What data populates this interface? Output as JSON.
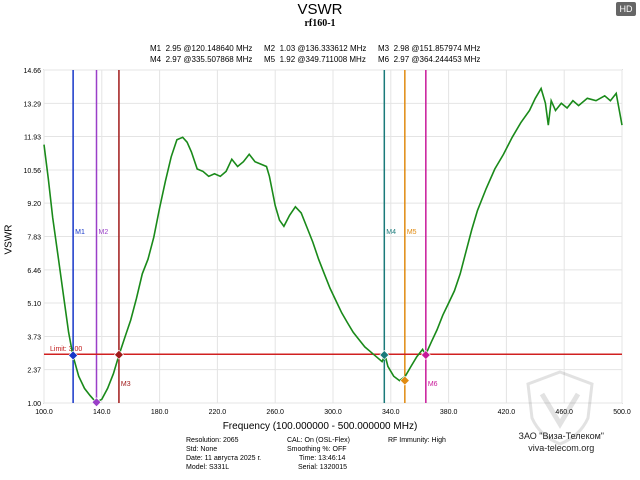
{
  "badge": "HD",
  "chart_data": {
    "type": "line",
    "title": "VSWR",
    "subtitle": "rf160-1",
    "xlabel": "Frequency (100.000000 - 500.000000 MHz)",
    "ylabel": "VSWR",
    "xlim": [
      100,
      500
    ],
    "ylim": [
      1.0,
      14.66
    ],
    "xticks": [
      "100.0",
      "140.0",
      "180.0",
      "220.0",
      "260.0",
      "300.0",
      "340.0",
      "380.0",
      "420.0",
      "460.0",
      "500.0"
    ],
    "yticks": [
      "1.00",
      "2.37",
      "3.73",
      "5.10",
      "6.46",
      "7.83",
      "9.20",
      "10.56",
      "11.93",
      "13.29",
      "14.66"
    ],
    "limit": {
      "label": "Limit: 3.00",
      "value": 3.0
    },
    "series": [
      {
        "color": "#1a8a1a",
        "x": [
          100,
          103,
          106,
          110,
          114,
          117,
          120,
          124,
          128,
          132,
          136,
          140,
          144,
          148,
          152,
          156,
          160,
          164,
          168,
          172,
          176,
          180,
          184,
          188,
          192,
          196,
          199,
          202,
          206,
          210,
          214,
          218,
          222,
          226,
          230,
          234,
          238,
          242,
          246,
          250,
          254,
          256,
          258,
          260,
          263,
          266,
          270,
          274,
          278,
          282,
          286,
          290,
          294,
          298,
          302,
          306,
          310,
          314,
          318,
          322,
          326,
          330,
          334,
          336,
          338,
          342,
          346,
          350,
          354,
          358,
          362,
          364,
          368,
          372,
          376,
          380,
          384,
          388,
          392,
          396,
          400,
          406,
          412,
          418,
          424,
          430,
          436,
          440,
          444,
          447,
          449,
          451,
          454,
          458,
          462,
          466,
          470,
          476,
          482,
          488,
          492,
          496,
          500
        ],
        "y": [
          11.6,
          10.2,
          8.6,
          6.9,
          5.2,
          3.9,
          2.95,
          2.1,
          1.6,
          1.3,
          1.03,
          1.15,
          1.6,
          2.2,
          2.98,
          3.7,
          4.4,
          5.3,
          6.3,
          6.9,
          7.8,
          9.0,
          10.1,
          11.1,
          11.8,
          11.9,
          11.7,
          11.3,
          10.6,
          10.5,
          10.3,
          10.4,
          10.3,
          10.5,
          11.0,
          10.7,
          10.9,
          11.2,
          10.9,
          10.8,
          10.7,
          10.3,
          9.7,
          9.1,
          8.5,
          8.25,
          8.7,
          9.05,
          8.8,
          8.2,
          7.6,
          6.9,
          6.3,
          5.7,
          5.2,
          4.7,
          4.3,
          3.9,
          3.6,
          3.3,
          3.1,
          2.9,
          2.7,
          2.97,
          2.5,
          2.1,
          1.92,
          2.1,
          2.5,
          2.9,
          3.2,
          2.97,
          3.5,
          4.0,
          4.6,
          5.1,
          5.6,
          6.3,
          7.2,
          8.1,
          8.9,
          9.8,
          10.6,
          11.2,
          11.9,
          12.5,
          13.0,
          13.5,
          13.9,
          13.3,
          12.4,
          13.4,
          13.0,
          13.3,
          13.1,
          13.4,
          13.2,
          13.5,
          13.4,
          13.6,
          13.4,
          13.7,
          12.4
        ]
      }
    ],
    "markers": [
      {
        "name": "M1",
        "label": "M1",
        "x": 120.14864,
        "y": 2.95,
        "color": "#1636c8",
        "readout": "2.95 @120.148640 MHz",
        "tag_pos": "top"
      },
      {
        "name": "M2",
        "label": "M2",
        "x": 136.333612,
        "y": 1.03,
        "color": "#9a3fc8",
        "readout": "1.03 @136.333612 MHz",
        "tag_pos": "top"
      },
      {
        "name": "M3",
        "label": "M3",
        "x": 151.857974,
        "y": 2.98,
        "color": "#a01a1a",
        "readout": "2.98 @151.857974 MHz",
        "tag_pos": "bottom"
      },
      {
        "name": "M4",
        "label": "M4",
        "x": 335.507868,
        "y": 2.97,
        "color": "#1a7a7a",
        "readout": "2.97 @335.507868 MHz",
        "tag_pos": "top"
      },
      {
        "name": "M5",
        "label": "M5",
        "x": 349.711008,
        "y": 1.92,
        "color": "#e08a10",
        "readout": "1.92 @349.711008 MHz",
        "tag_pos": "top"
      },
      {
        "name": "M6",
        "label": "M6",
        "x": 364.244453,
        "y": 2.97,
        "color": "#c81a9a",
        "readout": "2.97 @364.244453 MHz",
        "tag_pos": "bottom"
      }
    ],
    "grid": true
  },
  "footer": {
    "resolution": "Resolution: 2065",
    "std": "Std: None",
    "date": "Date: 11 августа 2025 г.",
    "model": "Model: S331L",
    "cal": "CAL: On (OSL-Flex)",
    "smoothing": "Smoothing %: OFF",
    "time": "Time: 13:46:14",
    "serial": "Serial: 1320015",
    "rf": "RF Immunity: High"
  },
  "brand": {
    "name": "ЗАО \"Виза-Телеком\"",
    "site": "viva-telecom.org"
  }
}
